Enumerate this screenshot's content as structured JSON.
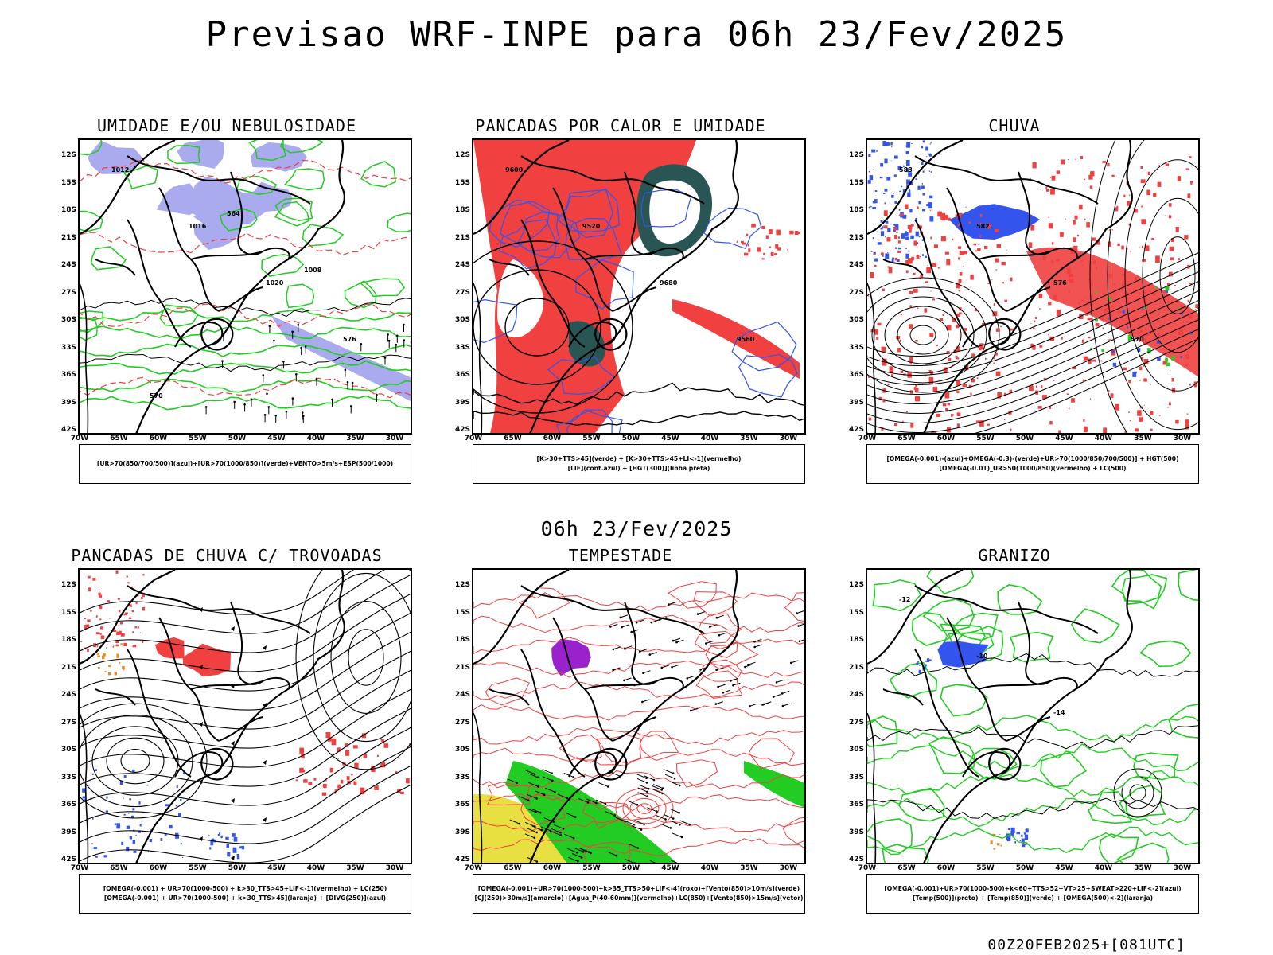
{
  "title": "Previsao WRF-INPE  para 06h 23/Fev/2025",
  "mid_title": "06h 23/Fev/2025",
  "footer": "00Z20FEB2025+[081UTC]",
  "lat_labels": [
    "12S",
    "15S",
    "18S",
    "21S",
    "24S",
    "27S",
    "30S",
    "33S",
    "36S",
    "39S",
    "42S"
  ],
  "lon_labels": [
    "70W",
    "65W",
    "60W",
    "55W",
    "50W",
    "45W",
    "40W",
    "35W",
    "30W"
  ],
  "colors": {
    "red": "#f04040",
    "green": "#22cc22",
    "blue": "#3355ee",
    "lavender": "#aaaaee",
    "dark_teal": "#2a5555",
    "yellow": "#e8e040",
    "purple": "#9922cc",
    "orange": "#ee8822"
  },
  "panels": [
    {
      "title": "UMIDADE E/OU NEBULOSIDADE",
      "legend": [
        "[UR>70(850/700/500)](azul)+[UR>70(1000/850)](verde)+VENTO>5m/s+ESP(500/1000)"
      ],
      "contour_labels": [
        "1012",
        "1016",
        "1020",
        "576",
        "570",
        "564",
        "1008"
      ]
    },
    {
      "title": "PANCADAS POR CALOR E UMIDADE",
      "legend": [
        "[K>30+TTS>45](verde) + [K>30+TTS>45+LI<-1](vermelho)",
        "[LIF](cont.azul) + [HGT(300)](linha preta)"
      ],
      "contour_labels": [
        "9600",
        "9520",
        "9680",
        "9560"
      ]
    },
    {
      "title": "CHUVA",
      "legend": [
        "[OMEGA(-0.001)-(azul)+OMEGA(-0.3)-(verde)+UR>70(1000/850/700/500)] + HGT(500)",
        "[OMEGA(-0.01)_UR>50(1000/850)(vermelho) + LC(500)"
      ],
      "contour_labels": [
        "588",
        "582",
        "576",
        "570"
      ]
    },
    {
      "title": "PANCADAS DE CHUVA C/ TROVOADAS",
      "legend": [
        "[OMEGA(-0.001) + UR>70(1000-500) + k>30_TTS>45+LIF<-1](vermelho) + LC(250)",
        "[OMEGA(-0.001) + UR>70(1000-500) + k>30_TTS>45](laranja) + [DIVG(250)](azul)"
      ],
      "contour_labels": []
    },
    {
      "title": "TEMPESTADE",
      "legend": [
        "[OMEGA(-0.001)+UR>70(1000-500)+k>35_TTS>50+LIF<-4](roxo)+[Vento(850)>10m/s](verde)",
        "[CJ(250)>30m/s](amarelo)+[Agua_P(40-60mm)](vermelho)+LC(850)+[Vento(850)>15m/s](vetor)"
      ],
      "contour_labels": []
    },
    {
      "title": "GRANIZO",
      "legend": [
        "[OMEGA(-0.001)+UR>70(1000-500)+k<60+TTS>52+VT>25+SWEAT>220+LIF<-2](azul)",
        "[Temp(500)](preto) + [Temp(850)](verde) + [OMEGA(500)<-2](laranja)"
      ],
      "contour_labels": [
        "-12",
        "-10",
        "-14"
      ]
    }
  ]
}
